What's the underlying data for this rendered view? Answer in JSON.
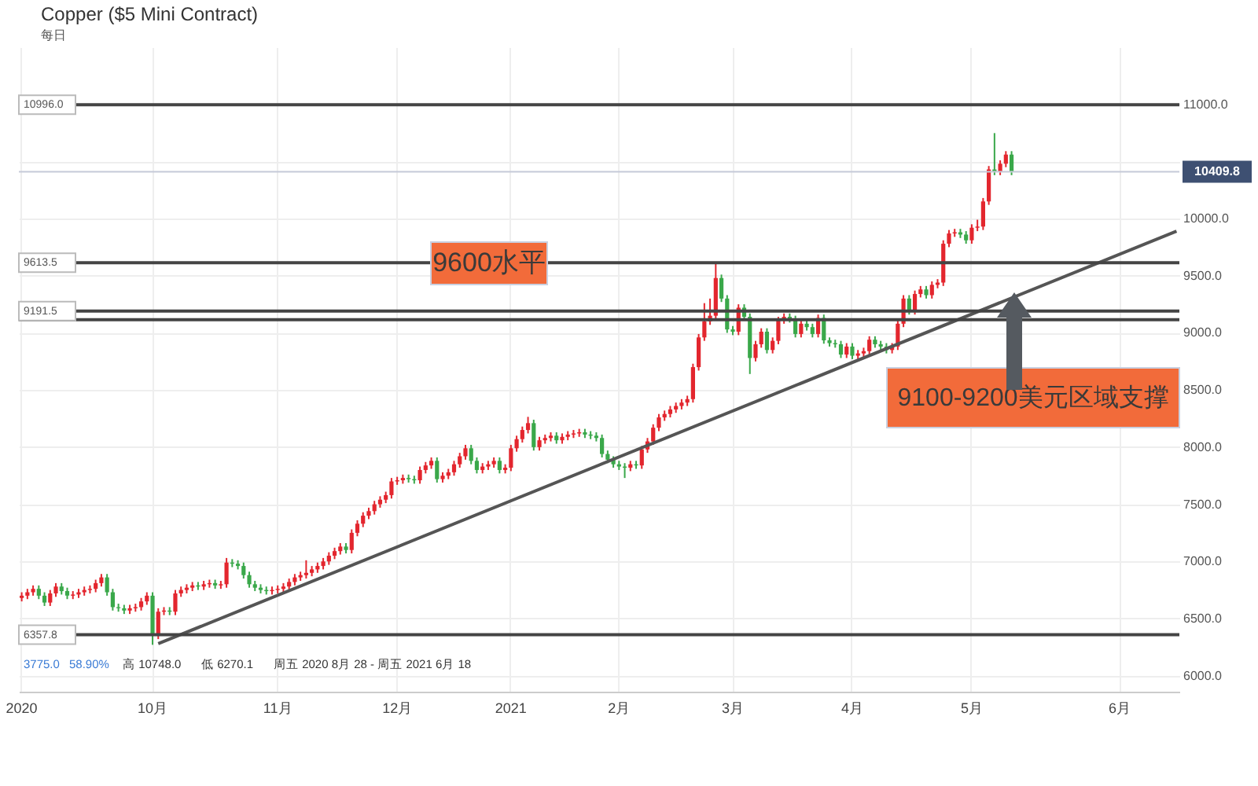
{
  "chart_data": {
    "type": "candlestick",
    "title": "Copper ($5 Mini Contract)",
    "subtitle": "每日",
    "categories": [
      "2020",
      null,
      null,
      null,
      null,
      null,
      null,
      null,
      null,
      null,
      null,
      null,
      null,
      null,
      null,
      null,
      null,
      null,
      null,
      null,
      null,
      null,
      null,
      "10月",
      null,
      null,
      null,
      null,
      null,
      null,
      null,
      null,
      null,
      null,
      null,
      null,
      null,
      null,
      null,
      null,
      null,
      null,
      null,
      null,
      null,
      "11月",
      null,
      null,
      null,
      null,
      null,
      null,
      null,
      null,
      null,
      null,
      null,
      null,
      null,
      null,
      null,
      null,
      null,
      null,
      null,
      null,
      "12月",
      null,
      null,
      null,
      null,
      null,
      null,
      null,
      null,
      null,
      null,
      null,
      null,
      null,
      null,
      null,
      null,
      null,
      null,
      null,
      "2021",
      null,
      null,
      null,
      null,
      null,
      null,
      null,
      null,
      null,
      null,
      null,
      null,
      null,
      null,
      null,
      null,
      null,
      null,
      "2月",
      null,
      null,
      null,
      null,
      null,
      null,
      null,
      null,
      null,
      null,
      null,
      null,
      null,
      null,
      null,
      null,
      null,
      null,
      null,
      "3月",
      null,
      null,
      null,
      null,
      null,
      null,
      null,
      null,
      null,
      null,
      null,
      null,
      null,
      null,
      null,
      null,
      null,
      null,
      null,
      null,
      "4月",
      null,
      null,
      null,
      null,
      null,
      null,
      null,
      null,
      null,
      null,
      null,
      null,
      null,
      null,
      null,
      null,
      null,
      null,
      null,
      null,
      "5月",
      null,
      null,
      null,
      null,
      null,
      null,
      null,
      null,
      null,
      null,
      null,
      null,
      null,
      null,
      null,
      null,
      null,
      null,
      null,
      null,
      null,
      null,
      null,
      null,
      null,
      "6月",
      null,
      null,
      null,
      null,
      null,
      null,
      null,
      null,
      null,
      null
    ],
    "ohlc": [
      [
        6680,
        6730,
        6650,
        6700
      ],
      [
        6700,
        6760,
        6670,
        6730
      ],
      [
        6730,
        6790,
        6700,
        6760
      ],
      [
        6760,
        6790,
        6670,
        6700
      ],
      [
        6700,
        6730,
        6610,
        6640
      ],
      [
        6640,
        6750,
        6610,
        6720
      ],
      [
        6720,
        6810,
        6690,
        6780
      ],
      [
        6780,
        6810,
        6710,
        6740
      ],
      [
        6740,
        6770,
        6670,
        6700
      ],
      [
        6700,
        6740,
        6670,
        6710
      ],
      [
        6710,
        6760,
        6680,
        6730
      ],
      [
        6730,
        6780,
        6700,
        6750
      ],
      [
        6750,
        6790,
        6720,
        6760
      ],
      [
        6760,
        6840,
        6730,
        6810
      ],
      [
        6810,
        6890,
        6780,
        6860
      ],
      [
        6860,
        6890,
        6700,
        6730
      ],
      [
        6730,
        6760,
        6570,
        6600
      ],
      [
        6600,
        6630,
        6560,
        6590
      ],
      [
        6590,
        6620,
        6540,
        6570
      ],
      [
        6570,
        6620,
        6540,
        6590
      ],
      [
        6590,
        6630,
        6560,
        6600
      ],
      [
        6600,
        6680,
        6570,
        6650
      ],
      [
        6650,
        6730,
        6620,
        6700
      ],
      [
        6700,
        6730,
        6270.1,
        6350
      ],
      [
        6350,
        6590,
        6320,
        6560
      ],
      [
        6560,
        6600,
        6530,
        6570
      ],
      [
        6570,
        6600,
        6530,
        6560
      ],
      [
        6560,
        6750,
        6530,
        6720
      ],
      [
        6720,
        6780,
        6690,
        6750
      ],
      [
        6750,
        6800,
        6720,
        6770
      ],
      [
        6770,
        6820,
        6740,
        6790
      ],
      [
        6790,
        6820,
        6750,
        6780
      ],
      [
        6780,
        6830,
        6750,
        6800
      ],
      [
        6800,
        6840,
        6770,
        6810
      ],
      [
        6810,
        6840,
        6760,
        6790
      ],
      [
        6790,
        6830,
        6760,
        6800
      ],
      [
        6800,
        7030,
        6770,
        6990
      ],
      [
        6990,
        7020,
        6950,
        6980
      ],
      [
        6980,
        7010,
        6930,
        6960
      ],
      [
        6960,
        6990,
        6850,
        6880
      ],
      [
        6880,
        6910,
        6770,
        6800
      ],
      [
        6800,
        6830,
        6740,
        6770
      ],
      [
        6770,
        6800,
        6720,
        6750
      ],
      [
        6750,
        6780,
        6710,
        6740
      ],
      [
        6740,
        6780,
        6710,
        6750
      ],
      [
        6750,
        6790,
        6720,
        6760
      ],
      [
        6760,
        6810,
        6730,
        6780
      ],
      [
        6780,
        6850,
        6750,
        6820
      ],
      [
        6820,
        6890,
        6790,
        6860
      ],
      [
        6860,
        6910,
        6830,
        6880
      ],
      [
        6880,
        7010,
        6850,
        6900
      ],
      [
        6900,
        6960,
        6870,
        6930
      ],
      [
        6930,
        6990,
        6900,
        6960
      ],
      [
        6960,
        7030,
        6930,
        7000
      ],
      [
        7000,
        7080,
        6970,
        7050
      ],
      [
        7050,
        7120,
        7020,
        7090
      ],
      [
        7090,
        7160,
        7060,
        7130
      ],
      [
        7130,
        7160,
        7070,
        7100
      ],
      [
        7100,
        7280,
        7070,
        7250
      ],
      [
        7250,
        7360,
        7220,
        7330
      ],
      [
        7330,
        7430,
        7300,
        7400
      ],
      [
        7400,
        7470,
        7370,
        7440
      ],
      [
        7440,
        7530,
        7410,
        7500
      ],
      [
        7500,
        7570,
        7470,
        7540
      ],
      [
        7540,
        7610,
        7510,
        7580
      ],
      [
        7580,
        7730,
        7550,
        7700
      ],
      [
        7700,
        7740,
        7670,
        7710
      ],
      [
        7710,
        7760,
        7680,
        7730
      ],
      [
        7730,
        7760,
        7690,
        7720
      ],
      [
        7720,
        7750,
        7680,
        7710
      ],
      [
        7710,
        7830,
        7680,
        7800
      ],
      [
        7800,
        7870,
        7770,
        7840
      ],
      [
        7840,
        7910,
        7810,
        7880
      ],
      [
        7880,
        7910,
        7690,
        7720
      ],
      [
        7720,
        7780,
        7690,
        7750
      ],
      [
        7750,
        7810,
        7720,
        7780
      ],
      [
        7780,
        7880,
        7750,
        7850
      ],
      [
        7850,
        7950,
        7820,
        7920
      ],
      [
        7920,
        8020,
        7890,
        7990
      ],
      [
        7990,
        8020,
        7850,
        7880
      ],
      [
        7880,
        7910,
        7770,
        7800
      ],
      [
        7800,
        7860,
        7770,
        7830
      ],
      [
        7830,
        7880,
        7800,
        7850
      ],
      [
        7850,
        7910,
        7820,
        7880
      ],
      [
        7880,
        7910,
        7770,
        7800
      ],
      [
        7800,
        7850,
        7770,
        7820
      ],
      [
        7820,
        8020,
        7790,
        7990
      ],
      [
        7990,
        8100,
        7960,
        8070
      ],
      [
        8070,
        8180,
        8040,
        8150
      ],
      [
        8150,
        8265,
        8120,
        8210
      ],
      [
        8210,
        8240,
        7970,
        8000
      ],
      [
        8000,
        8090,
        7970,
        8060
      ],
      [
        8060,
        8110,
        8030,
        8080
      ],
      [
        8080,
        8130,
        8050,
        8100
      ],
      [
        8100,
        8130,
        8030,
        8060
      ],
      [
        8060,
        8120,
        8030,
        8090
      ],
      [
        8090,
        8140,
        8060,
        8110
      ],
      [
        8110,
        8150,
        8080,
        8120
      ],
      [
        8120,
        8160,
        8090,
        8130
      ],
      [
        8130,
        8160,
        8080,
        8110
      ],
      [
        8110,
        8140,
        8070,
        8100
      ],
      [
        8100,
        8130,
        8050,
        8080
      ],
      [
        8080,
        8110,
        7910,
        7940
      ],
      [
        7940,
        7970,
        7860,
        7890
      ],
      [
        7890,
        7920,
        7820,
        7850
      ],
      [
        7850,
        7880,
        7800,
        7830
      ],
      [
        7830,
        7860,
        7730,
        7820
      ],
      [
        7820,
        7880,
        7790,
        7850
      ],
      [
        7850,
        7880,
        7810,
        7840
      ],
      [
        7840,
        8010,
        7810,
        7980
      ],
      [
        7980,
        8080,
        7950,
        8050
      ],
      [
        8050,
        8200,
        8020,
        8170
      ],
      [
        8170,
        8290,
        8140,
        8260
      ],
      [
        8260,
        8320,
        8230,
        8290
      ],
      [
        8290,
        8360,
        8260,
        8330
      ],
      [
        8330,
        8390,
        8300,
        8360
      ],
      [
        8360,
        8420,
        8330,
        8390
      ],
      [
        8390,
        8450,
        8360,
        8420
      ],
      [
        8420,
        8730,
        8390,
        8700
      ],
      [
        8700,
        8990,
        8670,
        8960
      ],
      [
        8960,
        9260,
        8930,
        9100
      ],
      [
        9100,
        9300,
        9070,
        9150
      ],
      [
        9150,
        9615,
        9120,
        9480
      ],
      [
        9480,
        9510,
        9270,
        9300
      ],
      [
        9300,
        9330,
        9000,
        9030
      ],
      [
        9030,
        9060,
        8980,
        9010
      ],
      [
        9010,
        9250,
        8980,
        9220
      ],
      [
        9220,
        9250,
        9110,
        9140
      ],
      [
        9140,
        9170,
        8640,
        8780
      ],
      [
        8780,
        8930,
        8750,
        8900
      ],
      [
        8900,
        9040,
        8870,
        9010
      ],
      [
        9010,
        9040,
        8820,
        8850
      ],
      [
        8850,
        8960,
        8820,
        8930
      ],
      [
        8930,
        9140,
        8900,
        9110
      ],
      [
        9110,
        9170,
        9080,
        9140
      ],
      [
        9140,
        9170,
        9090,
        9120
      ],
      [
        9120,
        9150,
        8960,
        8990
      ],
      [
        8990,
        9110,
        8960,
        9080
      ],
      [
        9080,
        9110,
        9020,
        9050
      ],
      [
        9050,
        9080,
        8960,
        8990
      ],
      [
        8990,
        9160,
        8960,
        9130
      ],
      [
        9130,
        9160,
        8905,
        8935
      ],
      [
        8935,
        8960,
        8880,
        8910
      ],
      [
        8910,
        8940,
        8870,
        8900
      ],
      [
        8900,
        8930,
        8780,
        8810
      ],
      [
        8810,
        8910,
        8780,
        8880
      ],
      [
        8880,
        8910,
        8770,
        8800
      ],
      [
        8800,
        8850,
        8770,
        8820
      ],
      [
        8820,
        8870,
        8790,
        8840
      ],
      [
        8840,
        8970,
        8810,
        8940
      ],
      [
        8940,
        8970,
        8870,
        8900
      ],
      [
        8900,
        8930,
        8850,
        8880
      ],
      [
        8880,
        8910,
        8820,
        8850
      ],
      [
        8850,
        8910,
        8820,
        8880
      ],
      [
        8880,
        9110,
        8850,
        9080
      ],
      [
        9080,
        9330,
        9050,
        9300
      ],
      [
        9300,
        9330,
        9160,
        9190
      ],
      [
        9190,
        9370,
        9160,
        9340
      ],
      [
        9340,
        9410,
        9310,
        9380
      ],
      [
        9380,
        9410,
        9300,
        9330
      ],
      [
        9330,
        9450,
        9300,
        9420
      ],
      [
        9420,
        9470,
        9390,
        9440
      ],
      [
        9440,
        9810,
        9410,
        9780
      ],
      [
        9780,
        9900,
        9750,
        9870
      ],
      [
        9870,
        9910,
        9840,
        9880
      ],
      [
        9880,
        9910,
        9830,
        9860
      ],
      [
        9860,
        9890,
        9780,
        9810
      ],
      [
        9810,
        9950,
        9780,
        9920
      ],
      [
        9920,
        9990,
        9890,
        9930
      ],
      [
        9930,
        10180,
        9900,
        10150
      ],
      [
        10150,
        10460,
        10120,
        10430
      ],
      [
        10430,
        10748.0,
        10380,
        10410
      ],
      [
        10410,
        10510,
        10380,
        10480
      ],
      [
        10480,
        10590,
        10450,
        10560
      ],
      [
        10560,
        10590,
        10380,
        10410
      ],
      null,
      null,
      null,
      null,
      null,
      null,
      null,
      null,
      null,
      null,
      null,
      null,
      null,
      null,
      null,
      null,
      null,
      null,
      null,
      null,
      null,
      null,
      null,
      null,
      null,
      null,
      null,
      null,
      null
    ],
    "colors": [
      "#e3262e",
      "#e3262e",
      "#e3262e",
      "#3aa84a",
      "#3aa84a",
      "#e3262e",
      "#e3262e",
      "#3aa84a",
      "#3aa84a",
      "#e3262e",
      "#e3262e",
      "#e3262e",
      "#e3262e",
      "#e3262e",
      "#e3262e",
      "#3aa84a",
      "#3aa84a",
      "#3aa84a",
      "#3aa84a",
      "#e3262e",
      "#e3262e",
      "#e3262e",
      "#e3262e",
      "#3aa84a",
      "#e3262e",
      "#e3262e",
      "#3aa84a",
      "#e3262e",
      "#e3262e",
      "#e3262e",
      "#e3262e",
      "#3aa84a",
      "#e3262e",
      "#e3262e",
      "#3aa84a",
      "#e3262e",
      "#e3262e",
      "#3aa84a",
      "#3aa84a",
      "#3aa84a",
      "#3aa84a",
      "#3aa84a",
      "#3aa84a",
      "#3aa84a",
      "#e3262e",
      "#e3262e",
      "#e3262e",
      "#e3262e",
      "#e3262e",
      "#e3262e",
      "#e3262e",
      "#e3262e",
      "#e3262e",
      "#e3262e",
      "#e3262e",
      "#e3262e",
      "#e3262e",
      "#3aa84a",
      "#e3262e",
      "#e3262e",
      "#e3262e",
      "#e3262e",
      "#e3262e",
      "#e3262e",
      "#e3262e",
      "#e3262e",
      "#e3262e",
      "#e3262e",
      "#3aa84a",
      "#3aa84a",
      "#e3262e",
      "#e3262e",
      "#e3262e",
      "#3aa84a",
      "#e3262e",
      "#e3262e",
      "#e3262e",
      "#e3262e",
      "#e3262e",
      "#3aa84a",
      "#3aa84a",
      "#e3262e",
      "#e3262e",
      "#e3262e",
      "#3aa84a",
      "#e3262e",
      "#e3262e",
      "#e3262e",
      "#e3262e",
      "#e3262e",
      "#3aa84a",
      "#e3262e",
      "#e3262e",
      "#e3262e",
      "#3aa84a",
      "#e3262e",
      "#e3262e",
      "#e3262e",
      "#e3262e",
      "#3aa84a",
      "#3aa84a",
      "#3aa84a",
      "#3aa84a",
      "#3aa84a",
      "#3aa84a",
      "#3aa84a",
      "#3aa84a",
      "#e3262e",
      "#3aa84a",
      "#e3262e",
      "#e3262e",
      "#e3262e",
      "#e3262e",
      "#e3262e",
      "#e3262e",
      "#e3262e",
      "#e3262e",
      "#e3262e",
      "#e3262e",
      "#e3262e",
      "#e3262e",
      "#e3262e",
      "#e3262e",
      "#3aa84a",
      "#3aa84a",
      "#3aa84a",
      "#e3262e",
      "#3aa84a",
      "#3aa84a",
      "#e3262e",
      "#e3262e",
      "#3aa84a",
      "#e3262e",
      "#e3262e",
      "#e3262e",
      "#3aa84a",
      "#3aa84a",
      "#e3262e",
      "#3aa84a",
      "#3aa84a",
      "#e3262e",
      "#3aa84a",
      "#3aa84a",
      "#3aa84a",
      "#3aa84a",
      "#e3262e",
      "#3aa84a",
      "#e3262e",
      "#e3262e",
      "#e3262e",
      "#3aa84a",
      "#3aa84a",
      "#3aa84a",
      "#e3262e",
      "#e3262e",
      "#e3262e",
      "#3aa84a",
      "#e3262e",
      "#e3262e",
      "#3aa84a",
      "#e3262e",
      "#e3262e",
      "#e3262e",
      "#e3262e",
      "#e3262e",
      "#3aa84a",
      "#3aa84a",
      "#e3262e",
      "#e3262e",
      "#e3262e",
      "#e3262e",
      "#3aa84a",
      "#e3262e",
      "#e3262e",
      "#3aa84a",
      null,
      null,
      null,
      null,
      null,
      null,
      null,
      null,
      null,
      null,
      null,
      null,
      null,
      null,
      null,
      null,
      null,
      null,
      null,
      null,
      null,
      null,
      null,
      null,
      null,
      null,
      null,
      null,
      null
    ],
    "series": [
      {
        "type": "line",
        "color": "#555555",
        "values": [
          null,
          null,
          null,
          null,
          null,
          null,
          null,
          null,
          null,
          null,
          null,
          null,
          null,
          null,
          null,
          null,
          null,
          null,
          null,
          null,
          null,
          null,
          null,
          null,
          6280,
          null,
          null,
          null,
          null,
          null,
          null,
          null,
          null,
          null,
          null,
          null,
          null,
          null,
          null,
          null,
          null,
          null,
          null,
          null,
          null,
          null,
          null,
          null,
          null,
          null,
          null,
          null,
          null,
          null,
          null,
          null,
          null,
          null,
          null,
          null,
          null,
          null,
          null,
          null,
          null,
          null,
          null,
          null,
          null,
          null,
          null,
          null,
          null,
          null,
          null,
          null,
          null,
          null,
          null,
          null,
          null,
          null,
          null,
          null,
          null,
          null,
          null,
          null,
          null,
          null,
          null,
          null,
          null,
          null,
          null,
          null,
          null,
          null,
          null,
          null,
          null,
          null,
          null,
          null,
          null,
          null,
          null,
          null,
          null,
          null,
          null,
          null,
          null,
          null,
          null,
          null,
          null,
          null,
          null,
          null,
          null,
          null,
          null,
          null,
          null,
          null,
          null,
          null,
          null,
          null,
          null,
          null,
          null,
          null,
          null,
          null,
          null,
          null,
          null,
          null,
          null,
          null,
          null,
          null,
          null,
          null,
          null,
          null,
          null,
          null,
          null,
          null,
          null,
          null,
          null,
          null,
          null,
          null,
          null,
          null,
          null,
          null,
          null,
          null,
          null,
          null,
          null,
          null,
          null,
          null,
          null,
          null,
          null,
          null,
          null,
          null,
          null,
          null,
          null,
          null,
          null,
          null,
          null,
          null,
          null,
          null,
          null,
          null,
          null,
          null,
          null,
          null,
          null,
          null,
          null,
          null,
          null,
          null,
          null,
          null,
          null,
          null,
          null,
          9890
        ]
      }
    ],
    "ylim": [
      5860,
      11500
    ],
    "yticks": [
      {
        "value": 6000,
        "label": "6000.0"
      },
      {
        "value": 6500,
        "label": "6500.0"
      },
      {
        "value": 7000,
        "label": "7000.0"
      },
      {
        "value": 7500,
        "label": "7500.0"
      },
      {
        "value": 8000,
        "label": "8000.0"
      },
      {
        "value": 8500,
        "label": "8500.0"
      },
      {
        "value": 9000,
        "label": "9000.0"
      },
      {
        "value": 9500,
        "label": "9500.0"
      },
      {
        "value": 10000,
        "label": "10000.0"
      },
      {
        "value": 10500,
        "label": null
      },
      {
        "value": 11000,
        "label": "11000.0"
      }
    ],
    "ref_lines": [
      {
        "axis": "y",
        "value": 10996.0,
        "label": "10996.0",
        "color": "#444444"
      },
      {
        "axis": "y",
        "value": 10409.8,
        "label": "10409.8",
        "color": "#c5cad8"
      },
      {
        "axis": "y",
        "value": 9613.5,
        "label": "9613.5",
        "color": "#444444"
      },
      {
        "axis": "y",
        "value": 9191.5,
        "label": "9191.5",
        "color": "#444444"
      },
      {
        "axis": "y",
        "value": 9115,
        "label": null,
        "color": "#444444"
      },
      {
        "axis": "y",
        "value": 6357.8,
        "label": "6357.8",
        "color": "#444444"
      }
    ],
    "annotations": [
      "9600水平",
      "9100-9200美元区域支撑",
      "3775.0",
      "58.90%",
      "高 10748.0",
      "低 6270.1",
      "周五 2020 8月 28 - 周五 2021 6月 18"
    ],
    "grid": true
  }
}
